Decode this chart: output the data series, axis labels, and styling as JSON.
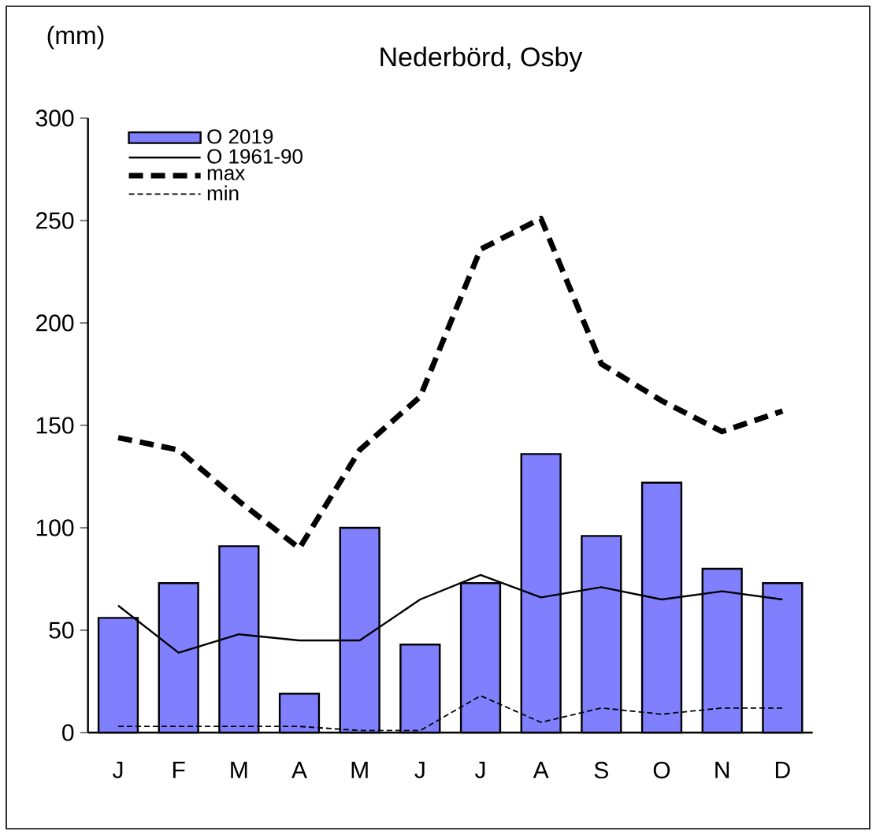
{
  "chart_data": {
    "type": "bar",
    "title": "Nederbörd,  Osby",
    "ylabel": "(mm)",
    "categories": [
      "J",
      "F",
      "M",
      "A",
      "M",
      "J",
      "J",
      "A",
      "S",
      "O",
      "N",
      "D"
    ],
    "series": [
      {
        "name": "O 2019",
        "color": "#8080ff",
        "values": [
          56,
          73,
          91,
          19,
          100,
          43,
          73,
          136,
          96,
          122,
          80,
          73
        ]
      },
      {
        "name": "O 1961-90",
        "type": "line",
        "color": "#000000",
        "line_style": "solid",
        "values": [
          62,
          39,
          48,
          45,
          45,
          65,
          77,
          66,
          71,
          65,
          69,
          65
        ]
      },
      {
        "name": "max",
        "type": "line",
        "color": "#000000",
        "line_style": "dashed",
        "values": [
          144,
          138,
          113,
          90,
          138,
          164,
          236,
          251,
          180,
          162,
          147,
          157
        ]
      },
      {
        "name": "min",
        "type": "line",
        "color": "#000000",
        "line_style": "dotted",
        "values": [
          3,
          3,
          3,
          3,
          1,
          1,
          18,
          5,
          12,
          9,
          12,
          12
        ]
      }
    ],
    "ylim": [
      0,
      300
    ],
    "yticks": [
      0,
      50,
      100,
      150,
      200,
      250,
      300
    ],
    "legend": "top left"
  }
}
